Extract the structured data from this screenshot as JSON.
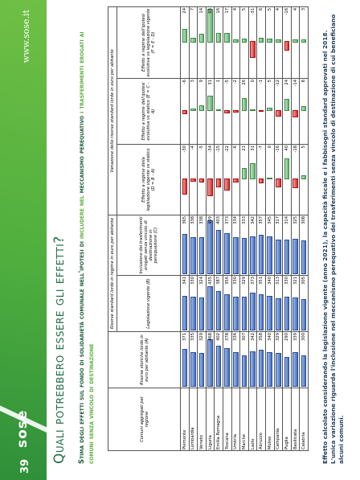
{
  "header": {
    "page_number": "39",
    "logo": "sose",
    "website": "www.sose.it"
  },
  "title": "Quali potrebbero essere gli effetti?",
  "subtitle": [
    "Stima degli effetti sul fondo di solidarietà comunale nell'ipotesi di ",
    "includere nel",
    " meccanismo perequativo ",
    "i trasferimenti erogati ai comuni senza vincolo di destinazione"
  ],
  "table": {
    "group_headers": [
      "Comuni aggregati per regione",
      "Risorse storiche lorde in euro per abitante (A)",
      "Risorse standard lorde in regime in euro per abitante",
      "Variazione delle risorse standard lorde in euro per abitante"
    ],
    "columns": [
      "Legislazione vigente (B)",
      "Inclusione dei trasferimenti erogati senza vincolo di destinazione in perequazione (C)",
      "Effetto a regime della legislazione vigente vs statico (D = B - A)",
      "Effetto a regime dell'ipotesi evolutiva vs statico (E = C - A)",
      "Effetto a regime dell'ipotesi evolutiva vs legislazione vigente (F = E - D)"
    ],
    "rows": [
      [
        "Piemonte",
        371,
        341,
        365,
        -30,
        -6,
        24
      ],
      [
        "Lombardia",
        335,
        330,
        338,
        -4,
        3,
        7
      ],
      [
        "Veneto",
        329,
        324,
        338,
        -5,
        9,
        14
      ],
      [
        "Liguria",
        468,
        435,
        499,
        -34,
        31,
        65
      ],
      [
        "Emilia Romagna",
        402,
        387,
        403,
        -15,
        1,
        16
      ],
      [
        "Toscana",
        378,
        356,
        373,
        -22,
        -5,
        17
      ],
      [
        "Umbria",
        336,
        330,
        334,
        -6,
        -2,
        4
      ],
      [
        "Marche",
        307,
        329,
        333,
        21,
        26,
        5
      ],
      [
        "Lazio",
        342,
        373,
        342,
        31,
        0,
        -31
      ],
      [
        "Abruzzo",
        358,
        351,
        357,
        -7,
        -1,
        6
      ],
      [
        "Molise",
        340,
        340,
        345,
        0,
        5,
        5
      ],
      [
        "Campania",
        329,
        313,
        317,
        -16,
        -12,
        4
      ],
      [
        "Puglia",
        290,
        330,
        314,
        40,
        24,
        -16
      ],
      [
        "Basilicata",
        339,
        321,
        325,
        -18,
        -14,
        4
      ],
      [
        "Calabria",
        300,
        305,
        308,
        5,
        8,
        3
      ]
    ]
  },
  "footnote": "Effetto calcolato considerando la legislazione vigente (anno 2021), la capacità fiscale e i fabbisogni standard approvati nel 2018. L'unica variazione riguarda l'inclusione nel meccanismo perequativo dei trasferimenti senza vincolo di destinazione di cui beneficiano alcuni comuni."
}
